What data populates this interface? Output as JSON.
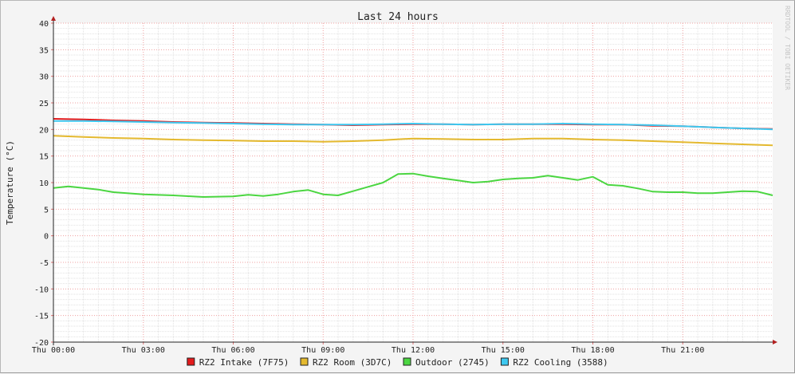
{
  "watermark": "RRDTOOL / TOBI OETIKER",
  "chart_data": {
    "type": "line",
    "title": "Last 24 hours",
    "ylabel": "Temperature (°C)",
    "xlabel": "",
    "ylim": [
      -20,
      40
    ],
    "y_ticks": [
      40,
      35,
      30,
      25,
      20,
      15,
      10,
      5,
      0,
      -5,
      -10,
      -15,
      -20
    ],
    "y_tick_labels": [
      "40",
      "35",
      "30",
      "25",
      "20",
      "15",
      "10",
      "5",
      "0",
      "-5",
      "-10",
      "-15",
      "-20"
    ],
    "x_range_hours": [
      0,
      24
    ],
    "x_ticks": [
      0,
      3,
      6,
      9,
      12,
      15,
      18,
      21
    ],
    "x_tick_labels": [
      "Thu 00:00",
      "Thu 03:00",
      "Thu 06:00",
      "Thu 09:00",
      "Thu 12:00",
      "Thu 15:00",
      "Thu 18:00",
      "Thu 21:00"
    ],
    "grid": true,
    "legend_position": "bottom",
    "series": [
      {
        "name": "RZ2 Intake (7F75)",
        "color": "#e31a1c",
        "x": [
          0,
          1,
          2,
          3,
          4,
          5,
          6,
          7,
          8,
          9,
          10,
          11,
          12,
          13,
          14,
          15,
          16,
          17,
          18,
          19,
          20,
          21,
          22,
          23,
          24
        ],
        "values": [
          22.0,
          21.9,
          21.7,
          21.6,
          21.4,
          21.3,
          21.2,
          21.1,
          21.0,
          20.9,
          20.8,
          20.9,
          21.0,
          21.0,
          20.9,
          21.0,
          21.0,
          21.0,
          20.9,
          20.9,
          20.7,
          20.6,
          20.4,
          20.2,
          20.1
        ]
      },
      {
        "name": "RZ2 Room (3D7C)",
        "color": "#e4b92f",
        "x": [
          0,
          1,
          2,
          3,
          4,
          5,
          6,
          7,
          8,
          9,
          10,
          11,
          12,
          13,
          14,
          15,
          16,
          17,
          18,
          19,
          20,
          21,
          22,
          23,
          24
        ],
        "values": [
          18.8,
          18.6,
          18.4,
          18.3,
          18.1,
          18.0,
          17.9,
          17.8,
          17.8,
          17.7,
          17.8,
          18.0,
          18.3,
          18.2,
          18.1,
          18.1,
          18.3,
          18.3,
          18.1,
          18.0,
          17.8,
          17.6,
          17.4,
          17.2,
          17.0
        ]
      },
      {
        "name": "Outdoor (2745)",
        "color": "#4bd641",
        "x": [
          0,
          0.5,
          1,
          1.5,
          2,
          3,
          4,
          5,
          6,
          6.5,
          7,
          7.5,
          8,
          8.5,
          9,
          9.5,
          10,
          10.5,
          11,
          11.5,
          12,
          12.5,
          13,
          13.5,
          14,
          14.5,
          15,
          15.5,
          16,
          16.5,
          17,
          17.5,
          18,
          18.5,
          19,
          19.5,
          20,
          20.5,
          21,
          21.5,
          22,
          22.5,
          23,
          23.5,
          24
        ],
        "values": [
          9.0,
          9.3,
          9.0,
          8.7,
          8.2,
          7.8,
          7.6,
          7.3,
          7.4,
          7.7,
          7.5,
          7.8,
          8.3,
          8.6,
          7.8,
          7.6,
          8.4,
          9.2,
          10.0,
          11.6,
          11.7,
          11.2,
          10.8,
          10.4,
          10.0,
          10.2,
          10.6,
          10.8,
          10.9,
          11.3,
          10.9,
          10.5,
          11.1,
          9.6,
          9.4,
          8.9,
          8.3,
          8.2,
          8.2,
          8.0,
          8.0,
          8.2,
          8.4,
          8.3,
          7.6
        ]
      },
      {
        "name": "RZ2 Cooling (3588)",
        "color": "#3ec8f0",
        "x": [
          0,
          1,
          2,
          3,
          4,
          5,
          6,
          7,
          8,
          9,
          10,
          11,
          12,
          13,
          14,
          15,
          16,
          17,
          18,
          19,
          20,
          21,
          22,
          23,
          24
        ],
        "values": [
          21.6,
          21.6,
          21.5,
          21.4,
          21.3,
          21.2,
          21.1,
          21.0,
          20.9,
          20.9,
          20.9,
          21.0,
          21.1,
          21.0,
          20.9,
          21.0,
          21.0,
          21.1,
          21.0,
          20.9,
          20.8,
          20.6,
          20.4,
          20.2,
          20.0
        ]
      }
    ]
  }
}
